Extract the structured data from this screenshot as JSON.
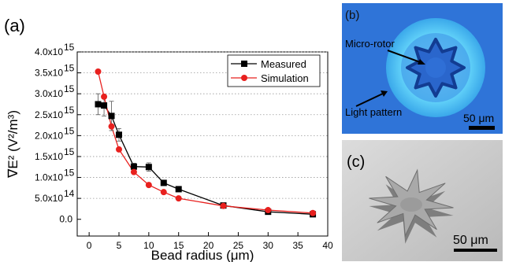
{
  "chart_data": {
    "type": "line",
    "panel_label": "(a)",
    "xlabel": "Bead radius (μm)",
    "ylabel": "∇E² (V²/m³)",
    "xlim": [
      -2,
      40
    ],
    "ylim": [
      -400000000000000.0,
      4000000000000000.0
    ],
    "x_ticks": [
      0,
      5,
      10,
      15,
      20,
      25,
      30,
      35,
      40
    ],
    "y_ticks": [
      {
        "value": 0,
        "label": "0.0"
      },
      {
        "value": 500000000000000.0,
        "label": "5.0x10",
        "exp": "14"
      },
      {
        "value": 1000000000000000.0,
        "label": "1.0x10",
        "exp": "15"
      },
      {
        "value": 1500000000000000.0,
        "label": "1.5x10",
        "exp": "15"
      },
      {
        "value": 2000000000000000.0,
        "label": "2.0x10",
        "exp": "15"
      },
      {
        "value": 2500000000000000.0,
        "label": "2.5x10",
        "exp": "15"
      },
      {
        "value": 3000000000000000.0,
        "label": "3.0x10",
        "exp": "15"
      },
      {
        "value": 3500000000000000.0,
        "label": "3.5x10",
        "exp": "15"
      },
      {
        "value": 4000000000000000.0,
        "label": "4.0x10",
        "exp": "15"
      }
    ],
    "grid": "horizontal dotted",
    "legend_position": "top-right",
    "series": [
      {
        "name": "Measured",
        "color": "#000000",
        "marker": "square",
        "x": [
          1.5,
          2.5,
          3.75,
          5,
          7.5,
          10,
          12.5,
          15,
          22.5,
          30,
          37.5
        ],
        "y": [
          2750000000000000.0,
          2720000000000000.0,
          2470000000000000.0,
          2020000000000000.0,
          1260000000000000.0,
          1250000000000000.0,
          870000000000000.0,
          720000000000000.0,
          330000000000000.0,
          180000000000000.0,
          120000000000000.0
        ],
        "error": [
          250000000000000.0,
          250000000000000.0,
          350000000000000.0,
          150000000000000.0,
          80000000000000.0,
          100000000000000.0,
          30000000000000.0,
          30000000000000.0,
          20000000000000.0,
          20000000000000.0,
          20000000000000.0
        ]
      },
      {
        "name": "Simulation",
        "color": "#e8201e",
        "marker": "circle",
        "x": [
          1.5,
          2.5,
          3.75,
          5,
          7.5,
          10,
          12.5,
          15,
          22.5,
          30,
          37.5
        ],
        "y": [
          3530000000000000.0,
          2930000000000000.0,
          2220000000000000.0,
          1670000000000000.0,
          1130000000000000.0,
          820000000000000.0,
          650000000000000.0,
          500000000000000.0,
          320000000000000.0,
          220000000000000.0,
          150000000000000.0
        ]
      }
    ]
  },
  "panel_b": {
    "label": "(b)",
    "rotor_label": "Micro-rotor",
    "pattern_label": "Light pattern",
    "scale_label": "50 μm",
    "colors": {
      "background": "#2f74d8",
      "ring": "#6ed7ff",
      "rotor_fill": "#2a66cc",
      "rotor_edge": "#123c92"
    }
  },
  "panel_c": {
    "label": "(c)",
    "scale_label": "50 μm"
  }
}
